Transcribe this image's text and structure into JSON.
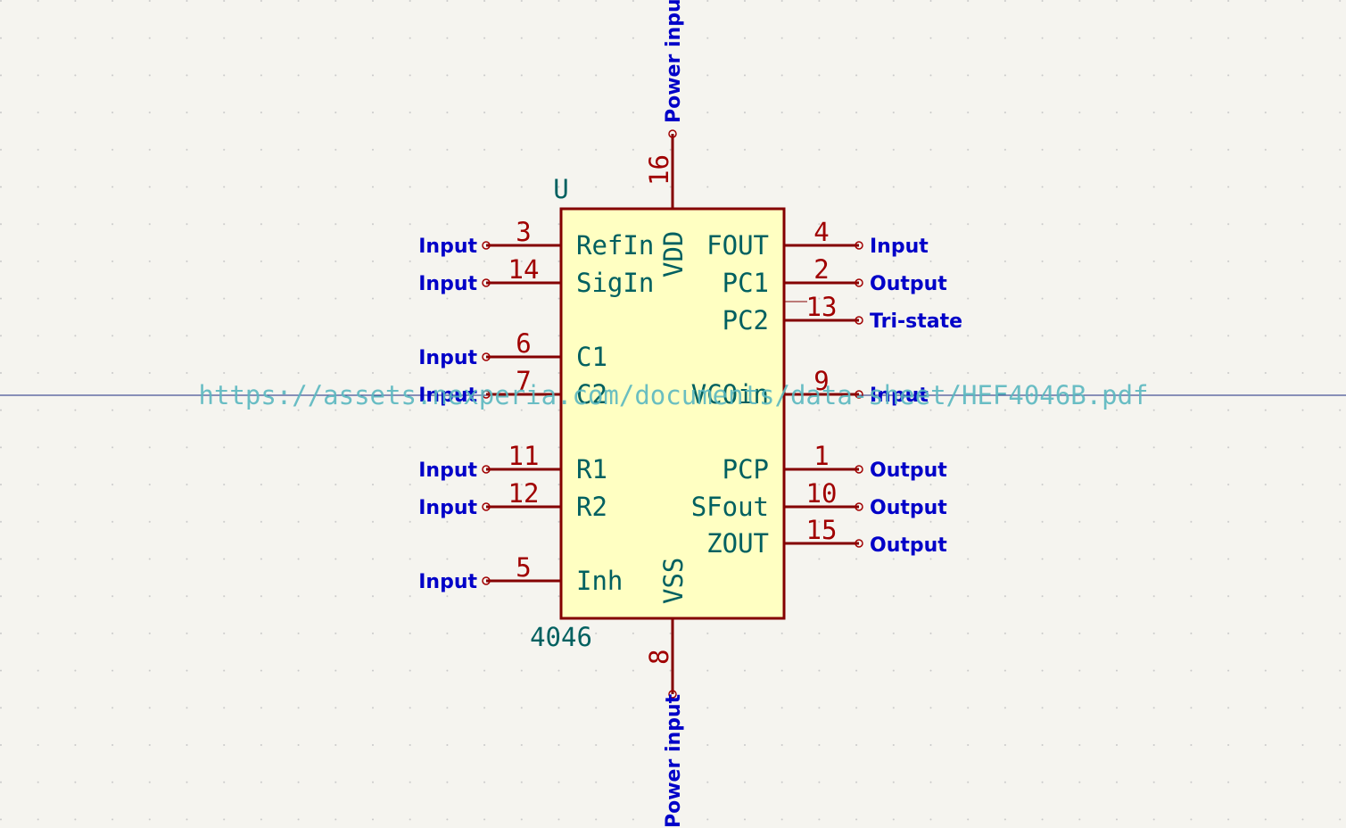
{
  "symbol": {
    "reference": "U",
    "value": "4046",
    "datasheet": "https://assets.nexperia.com/documents/data-sheet/HEF4046B.pdf"
  },
  "pins": {
    "p3": {
      "number": "3",
      "name": "RefIn",
      "type": "Input"
    },
    "p14": {
      "number": "14",
      "name": "SigIn",
      "type": "Input"
    },
    "p6": {
      "number": "6",
      "name": "C1",
      "type": "Input"
    },
    "p7": {
      "number": "7",
      "name": "C2",
      "type": "Input"
    },
    "p11": {
      "number": "11",
      "name": "R1",
      "type": "Input"
    },
    "p12": {
      "number": "12",
      "name": "R2",
      "type": "Input"
    },
    "p5": {
      "number": "5",
      "name": "Inh",
      "type": "Input"
    },
    "p4": {
      "number": "4",
      "name": "FOUT",
      "type": "Input"
    },
    "p2": {
      "number": "2",
      "name": "PC1",
      "type": "Output"
    },
    "p13": {
      "number": "13",
      "name": "PC2",
      "type": "Tri-state"
    },
    "p9": {
      "number": "9",
      "name": "VCOin",
      "type": "Input"
    },
    "p1": {
      "number": "1",
      "name": "PCP",
      "type": "Output"
    },
    "p10": {
      "number": "10",
      "name": "SFout",
      "type": "Output"
    },
    "p15": {
      "number": "15",
      "name": "ZOUT",
      "type": "Output"
    },
    "p16": {
      "number": "16",
      "name": "VDD",
      "type": "Power input"
    },
    "p8": {
      "number": "8",
      "name": "VSS",
      "type": "Power input"
    }
  },
  "colors": {
    "background": "#f5f4ef",
    "body_fill": "#ffffc2",
    "outline": "#840000",
    "pin_name": "#006060",
    "pin_number": "#a00000",
    "electrical_type": "#0000c8",
    "crosshair": "#1a2a80",
    "grid_dot": "#c8c8c8"
  }
}
